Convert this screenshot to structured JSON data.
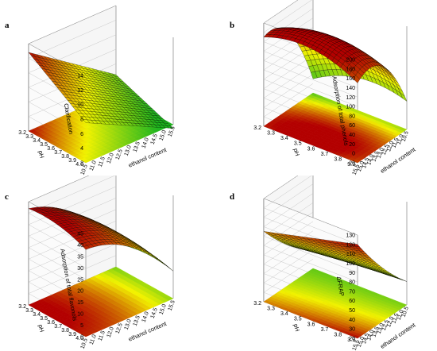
{
  "colors": {
    "low": "#1fb51f",
    "mid": "#f2f200",
    "high": "#b30000",
    "mesh": "#000000",
    "frame": "#555555"
  },
  "chart_data": [
    {
      "type": "surface3d",
      "panel_label": "a",
      "zlabel": "Clarification",
      "ylabel": "pH",
      "xlabel": "ethanol content",
      "x_ticks": [
        "10.5",
        "11.0",
        "11.5",
        "12.0",
        "12.5",
        "13.0",
        "13.5",
        "14.0",
        "14.5",
        "15.0",
        "15.5"
      ],
      "y_ticks": [
        "3.2",
        "3.3",
        "3.4",
        "3.5",
        "3.6",
        "3.7",
        "3.8",
        "3.9",
        "4.0"
      ],
      "z_ticks": [
        "2",
        "4",
        "6",
        "8",
        "10",
        "12",
        "14"
      ],
      "x_range": [
        10.5,
        15.5
      ],
      "y_range": [
        3.2,
        4.0
      ],
      "zlim": [
        2,
        14
      ],
      "corners": {
        "x_low_y_low": 7.5,
        "x_high_y_low": 1.5,
        "x_low_y_high": 12.8,
        "x_high_y_high": 4.5
      },
      "curvature": {
        "x": 0.0,
        "y": 0.0
      }
    },
    {
      "type": "surface3d",
      "panel_label": "b",
      "zlabel": "Adsorption of total phenols",
      "ylabel": "pH",
      "xlabel": "ethanol content",
      "x_ticks": [
        "15.5",
        "15.0",
        "14.5",
        "14.0",
        "13.5",
        "13.0",
        "12.5",
        "12.0",
        "11.5",
        "11.0",
        "10.5"
      ],
      "y_ticks": [
        "3.2",
        "3.3",
        "3.4",
        "3.5",
        "3.6",
        "3.7",
        "3.8",
        "3.9"
      ],
      "z_ticks": [
        "-20",
        "0",
        "20",
        "40",
        "60",
        "80",
        "100",
        "120",
        "140",
        "160",
        "180",
        "200"
      ],
      "x_range": [
        10.5,
        15.5
      ],
      "y_range": [
        3.2,
        3.9
      ],
      "zlim": [
        -20,
        200
      ],
      "corners": {
        "x_low_y_low": 150,
        "x_high_y_low": 40,
        "x_low_y_high": 170,
        "x_high_y_high": 10
      },
      "curvature": {
        "x": 55,
        "y": 25
      }
    },
    {
      "type": "surface3d",
      "panel_label": "c",
      "zlabel": "Adsorption of total flavonols",
      "ylabel": "pH",
      "xlabel": "ethanol content",
      "x_ticks": [
        "10.5",
        "11.0",
        "11.5",
        "12.0",
        "12.5",
        "13.0",
        "13.5",
        "14.0",
        "14.5",
        "15.0",
        "15.5"
      ],
      "y_ticks": [
        "3.2",
        "3.3",
        "3.4",
        "3.5",
        "3.6",
        "3.7",
        "3.8",
        "3.9",
        "4.0"
      ],
      "z_ticks": [
        "0",
        "5",
        "10",
        "15",
        "20",
        "25",
        "30",
        "35",
        "40",
        "45"
      ],
      "x_range": [
        10.5,
        15.5
      ],
      "y_range": [
        3.2,
        4.0
      ],
      "zlim": [
        0,
        45
      ],
      "corners": {
        "x_low_y_low": 38,
        "x_high_y_low": 12,
        "x_low_y_high": 42,
        "x_high_y_high": 10
      },
      "curvature": {
        "x": 6,
        "y": 2
      }
    },
    {
      "type": "surface3d",
      "panel_label": "d",
      "zlabel": "ΔFRAP",
      "ylabel": "pH",
      "xlabel": "ethanol content",
      "x_ticks": [
        "15.5",
        "15.0",
        "14.5",
        "14.0",
        "13.5",
        "13.0",
        "12.5",
        "12.0",
        "11.5",
        "11.0",
        "10.5"
      ],
      "y_ticks": [
        "3.2",
        "3.3",
        "3.4",
        "3.5",
        "3.6",
        "3.7",
        "3.8",
        "3.9"
      ],
      "z_ticks": [
        "20",
        "30",
        "40",
        "50",
        "60",
        "70",
        "80",
        "90",
        "100",
        "110",
        "120",
        "130"
      ],
      "x_range": [
        10.5,
        15.5
      ],
      "y_range": [
        3.2,
        3.9
      ],
      "zlim": [
        20,
        130
      ],
      "corners": {
        "x_low_y_low": 120,
        "x_high_y_low": 45,
        "x_low_y_high": 95,
        "x_high_y_high": 40
      },
      "curvature": {
        "x": -5,
        "y": 0
      }
    }
  ]
}
